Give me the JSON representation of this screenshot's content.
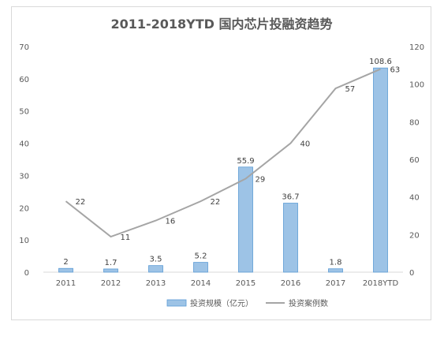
{
  "chart_data": {
    "type": "bar+line",
    "title": "2011-2018YTD 国内芯片投融资趋势",
    "categories": [
      "2011",
      "2012",
      "2013",
      "2014",
      "2015",
      "2016",
      "2017",
      "2018YTD"
    ],
    "series": [
      {
        "name": "投资规模（亿元）",
        "type": "bar",
        "axis": "right",
        "values": [
          2,
          1.7,
          3.5,
          5.2,
          55.9,
          36.7,
          1.8,
          108.6
        ],
        "labels": [
          "2",
          "1.7",
          "3.5",
          "5.2",
          "55.9",
          "36.7",
          "1.8",
          "108.6"
        ],
        "color": "#9dc3e6"
      },
      {
        "name": "投资案例数",
        "type": "line",
        "axis": "left",
        "values": [
          22,
          11,
          16,
          22,
          29,
          40,
          57,
          63
        ],
        "labels": [
          "22",
          "11",
          "16",
          "22",
          "29",
          "40",
          "57",
          "63"
        ],
        "color": "#a5a5a5"
      }
    ],
    "left_axis": {
      "min": 0,
      "max": 70,
      "step": 10,
      "ticks": [
        "0",
        "10",
        "20",
        "30",
        "40",
        "50",
        "60",
        "70"
      ]
    },
    "right_axis": {
      "min": 0,
      "max": 120,
      "step": 20,
      "ticks": [
        "0",
        "20",
        "40",
        "60",
        "80",
        "100",
        "120"
      ]
    },
    "grid": false,
    "legend_position": "bottom"
  }
}
